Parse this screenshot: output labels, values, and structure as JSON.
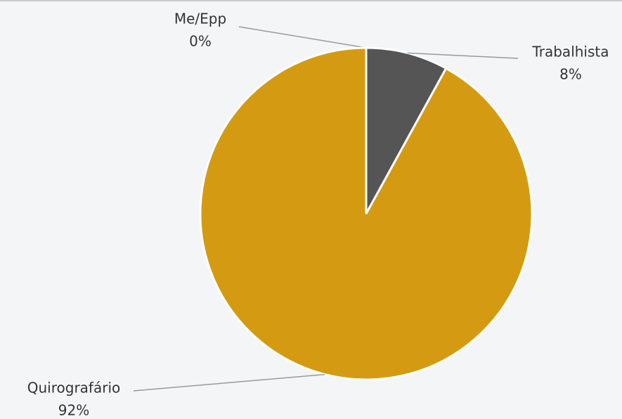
{
  "chart_data": {
    "type": "pie",
    "categories": [
      "Me/Epp",
      "Trabalhista",
      "Quirografário"
    ],
    "values": [
      0,
      8,
      92
    ],
    "value_labels": [
      "0%",
      "8%",
      "92%"
    ],
    "colors": [
      "#9a9a9a",
      "#555555",
      "#d49b12"
    ]
  }
}
